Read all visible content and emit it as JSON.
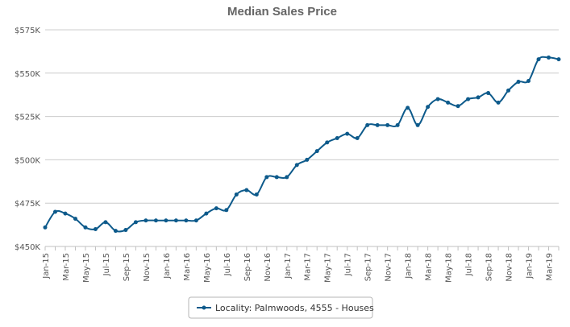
{
  "chart_data": {
    "type": "line",
    "title": "Median Sales Price",
    "xlabel": "",
    "ylabel": "",
    "ylim": [
      450000,
      575000
    ],
    "y_ticks": [
      450000,
      475000,
      500000,
      525000,
      550000,
      575000
    ],
    "y_tick_labels": [
      "$450K",
      "$475K",
      "$500K",
      "$525K",
      "$550K",
      "$575K"
    ],
    "x_tick_labels": [
      "Jan-15",
      "Mar-15",
      "May-15",
      "Jul-15",
      "Sep-15",
      "Nov-15",
      "Jan-16",
      "Mar-16",
      "May-16",
      "Jul-16",
      "Sep-16",
      "Nov-16",
      "Jan-17",
      "Mar-17",
      "May-17",
      "Jul-17",
      "Sep-17",
      "Nov-17",
      "Jan-18",
      "Mar-18",
      "May-18",
      "Jul-18",
      "Sep-18",
      "Nov-18",
      "Jan-19",
      "Mar-19"
    ],
    "x_tick_every_months": 2,
    "grid": true,
    "legend": "bottom-center",
    "series": [
      {
        "name": "Locality: Palmwoods, 4555 - Houses",
        "color": "#0d5a8b",
        "values": [
          461000,
          470000,
          469000,
          466000,
          461000,
          460000,
          464000,
          459000,
          459500,
          464000,
          465000,
          465000,
          465000,
          465000,
          465000,
          465000,
          469000,
          472000,
          471000,
          480000,
          482500,
          480000,
          490000,
          490000,
          490000,
          497000,
          500000,
          505000,
          510000,
          512500,
          515000,
          512500,
          520000,
          520000,
          520000,
          520000,
          530000,
          520000,
          530500,
          535000,
          533000,
          531000,
          535000,
          536000,
          538500,
          533000,
          540000,
          545000,
          545500,
          558000,
          559000,
          558000
        ]
      }
    ]
  }
}
